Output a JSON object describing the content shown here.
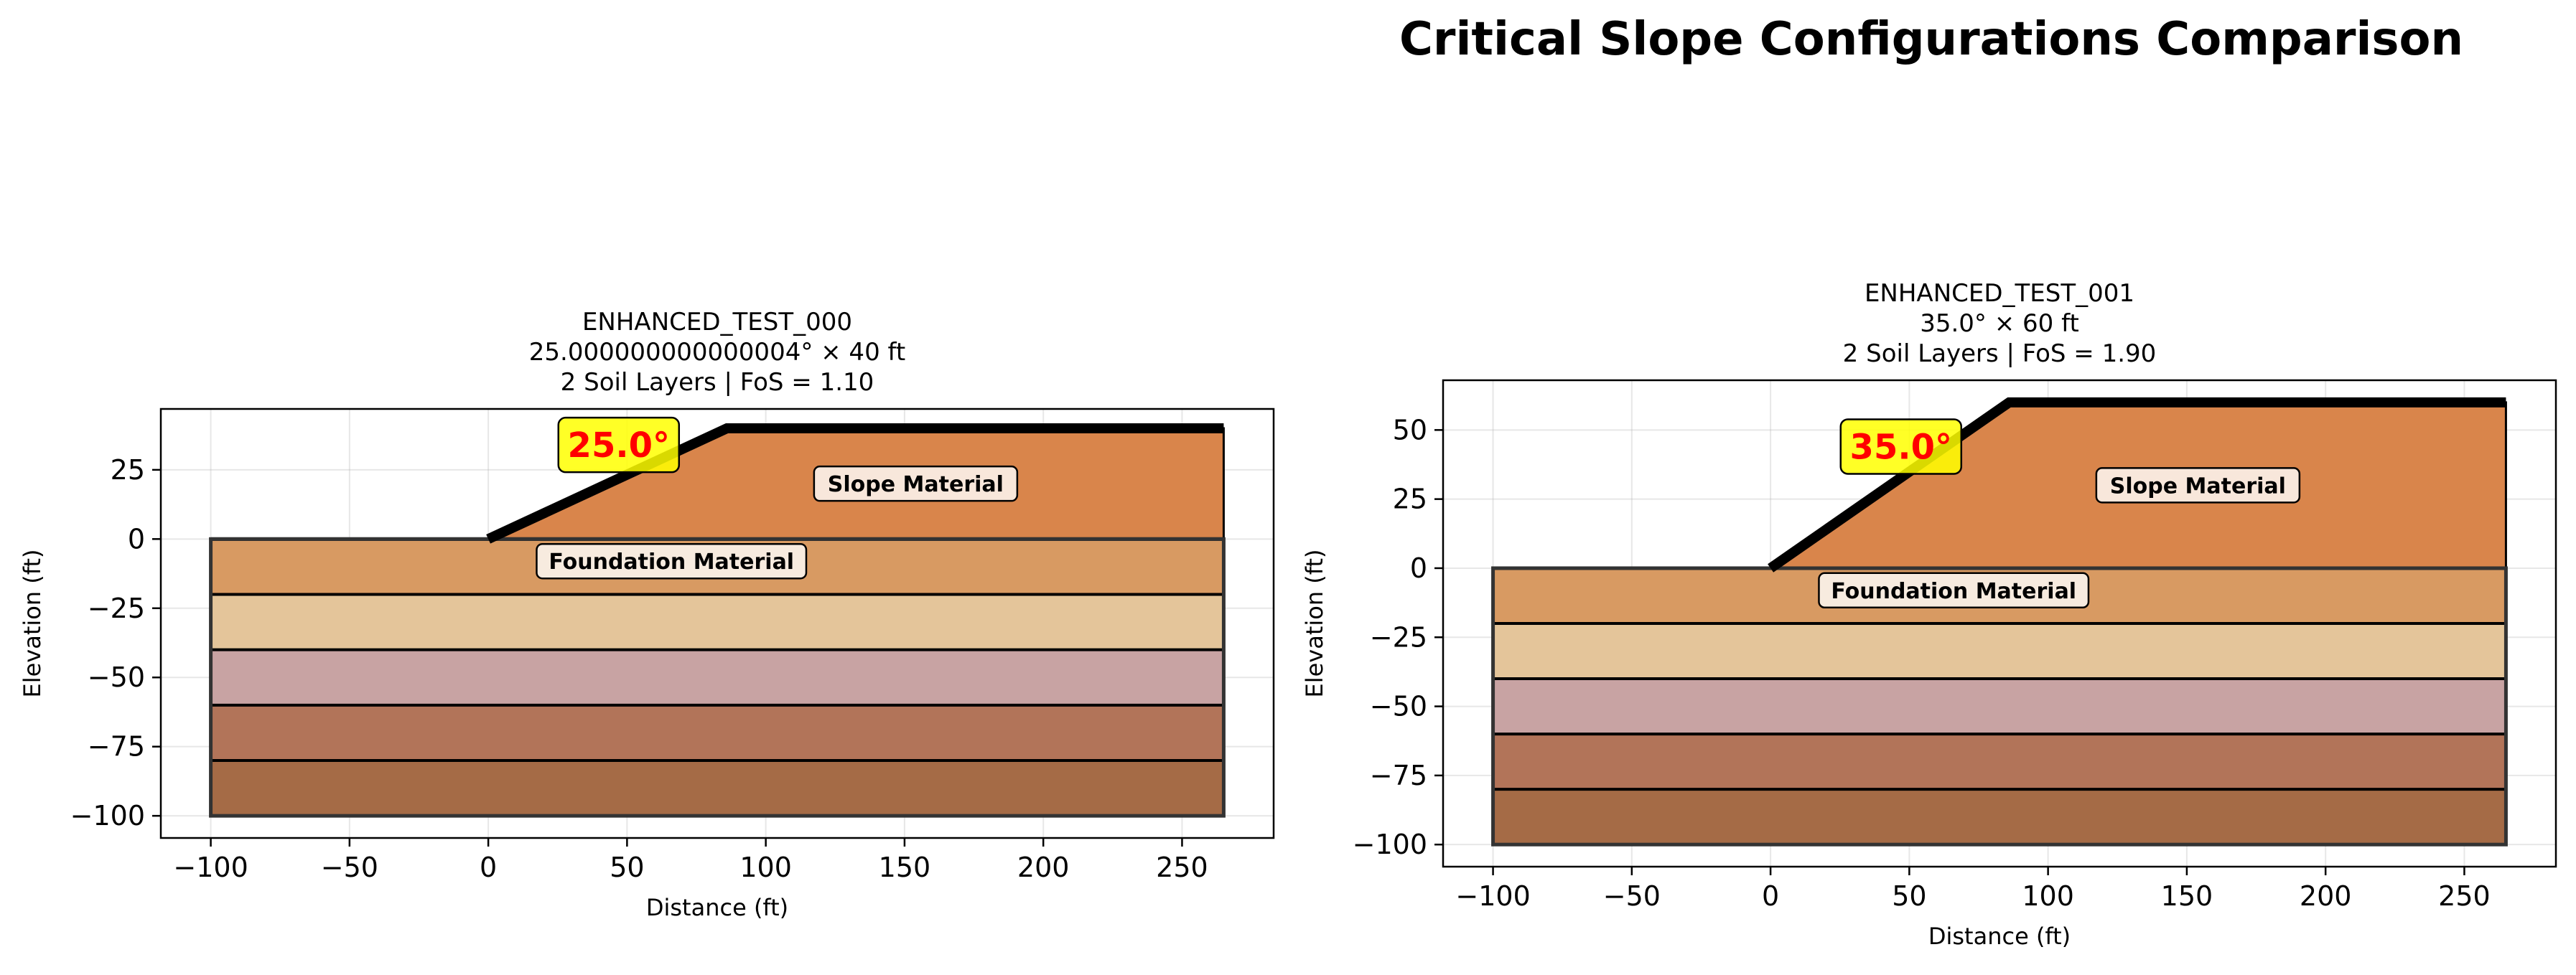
{
  "figure": {
    "suptitle": "Critical Slope Configurations Comparison"
  },
  "chart_data": [
    {
      "type": "area",
      "title_lines": [
        "ENHANCED_TEST_000",
        "25.000000000000004° × 40 ft",
        "2 Soil Layers | FoS = 1.10"
      ],
      "xlabel": "Distance (ft)",
      "ylabel": "Elevation (ft)",
      "xlim": [
        -118,
        283
      ],
      "ylim": [
        -108,
        47
      ],
      "xticks": [
        -100,
        -50,
        0,
        50,
        100,
        150,
        200,
        250
      ],
      "yticks": [
        -100,
        -75,
        -50,
        -25,
        0,
        25
      ],
      "grid": true,
      "slope_angle_deg": 25.0,
      "slope_height_ft": 40,
      "factor_of_safety": 1.1,
      "surface": [
        [
          -100,
          0
        ],
        [
          0,
          0
        ],
        [
          86,
          40
        ],
        [
          265,
          40
        ]
      ],
      "slope_polygon": [
        [
          0,
          0
        ],
        [
          86,
          40
        ],
        [
          265,
          40
        ],
        [
          265,
          0
        ]
      ],
      "layers": [
        {
          "top": 0,
          "bottom": -20,
          "color": "#D89A62"
        },
        {
          "top": -20,
          "bottom": -40,
          "color": "#E4C59A"
        },
        {
          "top": -40,
          "bottom": -60,
          "color": "#C8A3A3"
        },
        {
          "top": -60,
          "bottom": -80,
          "color": "#B27459"
        },
        {
          "top": -80,
          "bottom": -100,
          "color": "#A56B46"
        }
      ],
      "domain": {
        "xmin": -100,
        "xmax": 265
      },
      "slope_color": "#D9854B",
      "angle_label": {
        "text": "25.0°",
        "x": 47,
        "y": 34
      },
      "labels": [
        {
          "text": "Slope Material",
          "x": 154,
          "y": 20
        },
        {
          "text": "Foundation Material",
          "x": 66,
          "y": -8
        }
      ]
    },
    {
      "type": "area",
      "title_lines": [
        "ENHANCED_TEST_001",
        "35.0° × 60 ft",
        "2 Soil Layers | FoS = 1.90"
      ],
      "xlabel": "Distance (ft)",
      "ylabel": "Elevation (ft)",
      "xlim": [
        -118,
        283
      ],
      "ylim": [
        -108,
        68
      ],
      "xticks": [
        -100,
        -50,
        0,
        50,
        100,
        150,
        200,
        250
      ],
      "yticks": [
        -100,
        -75,
        -50,
        -25,
        0,
        25,
        50
      ],
      "grid": true,
      "slope_angle_deg": 35.0,
      "slope_height_ft": 60,
      "factor_of_safety": 1.9,
      "surface": [
        [
          -100,
          0
        ],
        [
          0,
          0
        ],
        [
          86,
          60
        ],
        [
          265,
          60
        ]
      ],
      "slope_polygon": [
        [
          0,
          0
        ],
        [
          86,
          60
        ],
        [
          265,
          60
        ],
        [
          265,
          0
        ]
      ],
      "layers": [
        {
          "top": 0,
          "bottom": -20,
          "color": "#D89A62"
        },
        {
          "top": -20,
          "bottom": -40,
          "color": "#E4C59A"
        },
        {
          "top": -40,
          "bottom": -60,
          "color": "#C8A3A3"
        },
        {
          "top": -60,
          "bottom": -80,
          "color": "#B27459"
        },
        {
          "top": -80,
          "bottom": -100,
          "color": "#A56B46"
        }
      ],
      "domain": {
        "xmin": -100,
        "xmax": 265
      },
      "slope_color": "#D9854B",
      "angle_label": {
        "text": "35.0°",
        "x": 47,
        "y": 44
      },
      "labels": [
        {
          "text": "Slope Material",
          "x": 154,
          "y": 30
        },
        {
          "text": "Foundation Material",
          "x": 66,
          "y": -8
        }
      ]
    }
  ]
}
